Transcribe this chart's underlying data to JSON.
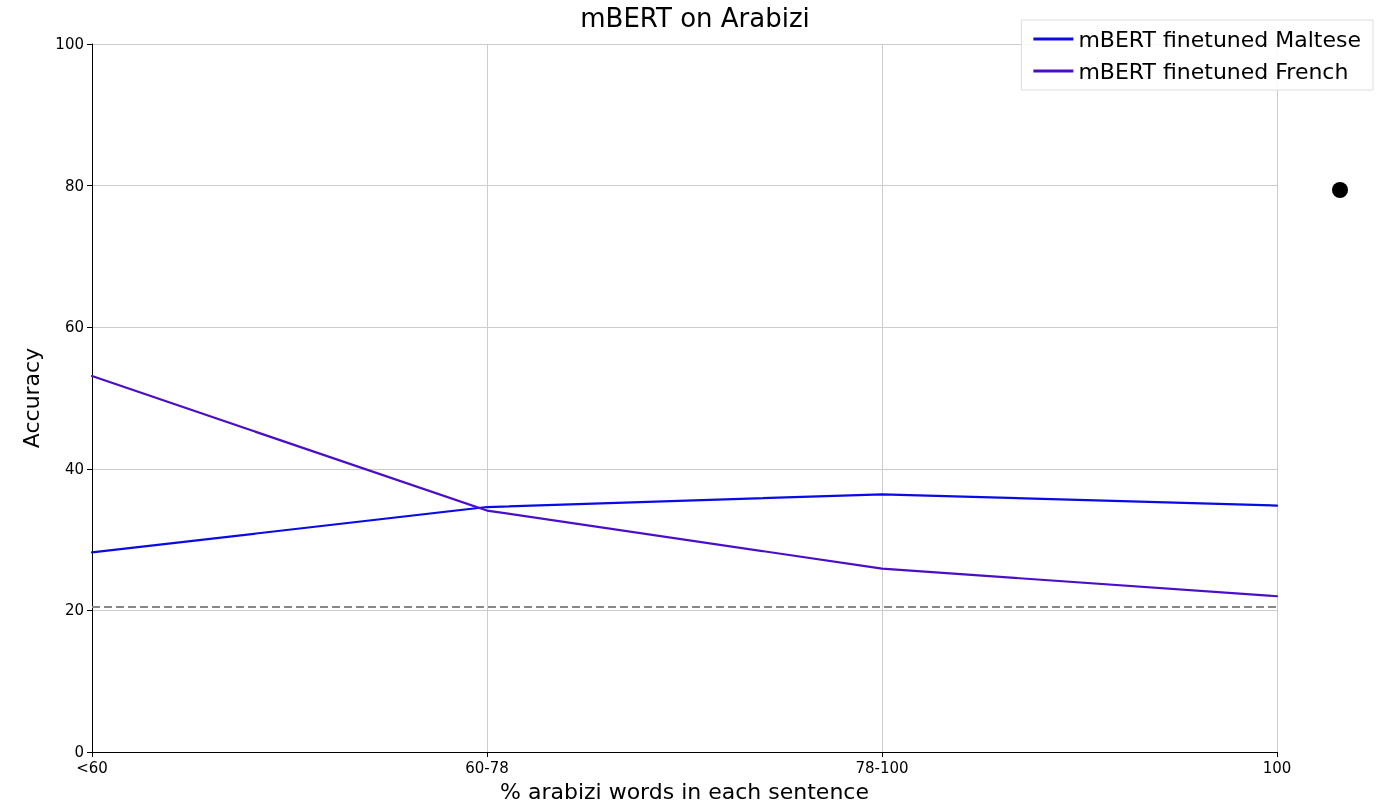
{
  "chart_data": {
    "type": "line",
    "title": "mBERT on Arabizi",
    "xlabel": "% arabizi words in each sentence",
    "ylabel": "Accuracy",
    "categories": [
      "<60",
      "60-78",
      "78-100",
      "100"
    ],
    "series": [
      {
        "name": "mBERT finetuned Maltese",
        "color": "#0a0ae6",
        "values": [
          28.2,
          34.6,
          36.4,
          34.8
        ]
      },
      {
        "name": "mBERT finetuned French",
        "color": "#4a0ec8",
        "values": [
          53.1,
          34.1,
          25.9,
          22.0
        ]
      }
    ],
    "ylim": [
      0,
      100
    ],
    "yticks": [
      0,
      20,
      40,
      60,
      80,
      100
    ],
    "grid": true,
    "legend": "top right",
    "marker": "none",
    "line_style": "solid",
    "ref_lines": [
      {
        "axis": "y",
        "value": 20.5,
        "color": "#888888",
        "line_style": "dashed"
      }
    ]
  }
}
